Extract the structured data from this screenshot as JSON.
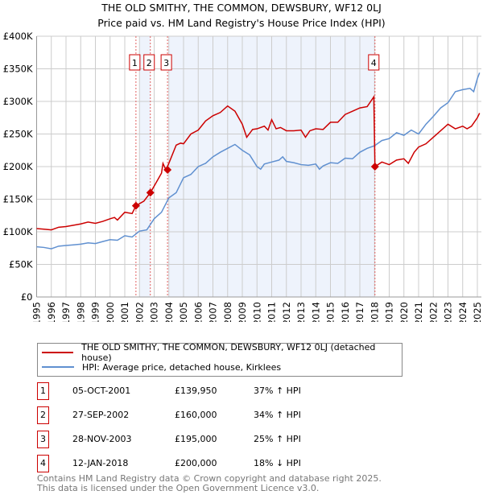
{
  "title": "THE OLD SMITHY, THE COMMON, DEWSBURY, WF12 0LJ",
  "subtitle": "Price paid vs. HM Land Registry's House Price Index (HPI)",
  "colors": {
    "property": "#cc0000",
    "hpi": "#6090d0",
    "shade": "#eef3fc"
  },
  "legend": {
    "property": "THE OLD SMITHY, THE COMMON, DEWSBURY, WF12 0LJ (detached house)",
    "hpi": "HPI: Average price, detached house, Kirklees"
  },
  "transactions": [
    {
      "num": "1",
      "date": "05-OCT-2001",
      "price": "£139,950",
      "hpi": "37% ↑ HPI"
    },
    {
      "num": "2",
      "date": "27-SEP-2002",
      "price": "£160,000",
      "hpi": "34% ↑ HPI"
    },
    {
      "num": "3",
      "date": "28-NOV-2003",
      "price": "£195,000",
      "hpi": "25% ↑ HPI"
    },
    {
      "num": "4",
      "date": "12-JAN-2018",
      "price": "£200,000",
      "hpi": "18% ↓ HPI"
    }
  ],
  "footer": [
    "Contains HM Land Registry data © Crown copyright and database right 2025.",
    "This data is licensed under the Open Government Licence v3.0."
  ],
  "chart_data": {
    "type": "line",
    "xlim": [
      1995,
      2025.2
    ],
    "ylim": [
      0,
      400000
    ],
    "yticks": [
      0,
      50000,
      100000,
      150000,
      200000,
      250000,
      300000,
      350000,
      400000
    ],
    "ytick_labels": [
      "£0",
      "£50K",
      "£100K",
      "£150K",
      "£200K",
      "£250K",
      "£300K",
      "£350K",
      "£400K"
    ],
    "xticks": [
      "1995",
      "1996",
      "1997",
      "1998",
      "1999",
      "2000",
      "2001",
      "2002",
      "2003",
      "2004",
      "2005",
      "2006",
      "2007",
      "2008",
      "2009",
      "2010",
      "2011",
      "2012",
      "2013",
      "2014",
      "2015",
      "2016",
      "2017",
      "2018",
      "2019",
      "2020",
      "2021",
      "2022",
      "2023",
      "2024",
      "2025"
    ],
    "grid": true,
    "shaded": [
      [
        2002.0,
        2002.74
      ],
      [
        2004.0,
        2018.03
      ]
    ],
    "sales": [
      {
        "label": "1",
        "x": 2001.76,
        "y": 139950
      },
      {
        "label": "2",
        "x": 2002.74,
        "y": 160000
      },
      {
        "label": "3",
        "x": 2003.91,
        "y": 195000
      },
      {
        "label": "4",
        "x": 2018.03,
        "y": 200000
      }
    ],
    "series": [
      {
        "name": "THE OLD SMITHY, THE COMMON, DEWSBURY, WF12 0LJ (detached house)",
        "x": [
          1995,
          1995.5,
          1996,
          1996.5,
          1997,
          1997.5,
          1998,
          1998.5,
          1999,
          1999.5,
          2000,
          2000.3,
          2000.5,
          2001,
          2001.5,
          2001.76,
          2002.3,
          2002.74,
          2003,
          2003.5,
          2003.6,
          2003.8,
          2004,
          2004.5,
          2004.8,
          2005,
          2005.5,
          2006,
          2006.5,
          2007,
          2007.5,
          2008,
          2008.5,
          2009,
          2009.3,
          2009.7,
          2010,
          2010.5,
          2010.75,
          2011,
          2011.3,
          2011.6,
          2012,
          2012.5,
          2013,
          2013.3,
          2013.6,
          2014,
          2014.5,
          2015,
          2015.5,
          2016,
          2016.5,
          2017,
          2017.5,
          2017.95,
          2018.03,
          2018.5,
          2019,
          2019.5,
          2020,
          2020.3,
          2020.7,
          2021,
          2021.5,
          2022,
          2022.5,
          2023,
          2023.5,
          2024,
          2024.3,
          2024.6,
          2025,
          2025.15
        ],
        "y": [
          105000,
          104000,
          103000,
          107000,
          108000,
          110000,
          112000,
          115000,
          113000,
          116000,
          120000,
          122000,
          118000,
          130000,
          128000,
          140000,
          147000,
          160000,
          170000,
          190000,
          205000,
          195000,
          205000,
          233000,
          236000,
          235000,
          250000,
          256000,
          270000,
          278000,
          283000,
          293000,
          285000,
          265000,
          245000,
          257000,
          258000,
          262000,
          256000,
          272000,
          258000,
          260000,
          255000,
          255000,
          256000,
          245000,
          255000,
          258000,
          257000,
          268000,
          268000,
          280000,
          285000,
          290000,
          292000,
          307000,
          200000,
          207000,
          203000,
          210000,
          212000,
          205000,
          222000,
          230000,
          235000,
          245000,
          255000,
          265000,
          258000,
          262000,
          258000,
          262000,
          275000,
          282000
        ]
      },
      {
        "name": "HPI: Average price, detached house, Kirklees",
        "x": [
          1995,
          1995.5,
          1996,
          1996.5,
          1997,
          1997.5,
          1998,
          1998.5,
          1999,
          1999.5,
          2000,
          2000.5,
          2001,
          2001.5,
          2002,
          2002.5,
          2003,
          2003.5,
          2004,
          2004.5,
          2005,
          2005.5,
          2006,
          2006.5,
          2007,
          2007.5,
          2008,
          2008.5,
          2009,
          2009.5,
          2010,
          2010.25,
          2010.5,
          2011,
          2011.5,
          2011.75,
          2012,
          2012.5,
          2013,
          2013.5,
          2014,
          2014.25,
          2014.5,
          2015,
          2015.5,
          2016,
          2016.5,
          2017,
          2017.5,
          2018,
          2018.5,
          2019,
          2019.5,
          2020,
          2020.5,
          2021,
          2021.5,
          2022,
          2022.5,
          2023,
          2023.5,
          2024,
          2024.5,
          2024.75,
          2025,
          2025.15
        ],
        "y": [
          77000,
          76000,
          74000,
          78000,
          79000,
          80000,
          81000,
          83000,
          82000,
          85000,
          88000,
          87000,
          94000,
          92000,
          101000,
          103000,
          120000,
          130000,
          152000,
          160000,
          183000,
          188000,
          200000,
          205000,
          215000,
          222000,
          228000,
          234000,
          225000,
          218000,
          200000,
          196000,
          204000,
          207000,
          210000,
          215000,
          208000,
          206000,
          203000,
          202000,
          204000,
          196000,
          201000,
          206000,
          205000,
          213000,
          212000,
          222000,
          228000,
          232000,
          240000,
          243000,
          252000,
          248000,
          256000,
          250000,
          265000,
          277000,
          290000,
          298000,
          315000,
          318000,
          320000,
          315000,
          335000,
          344000
        ]
      }
    ]
  }
}
